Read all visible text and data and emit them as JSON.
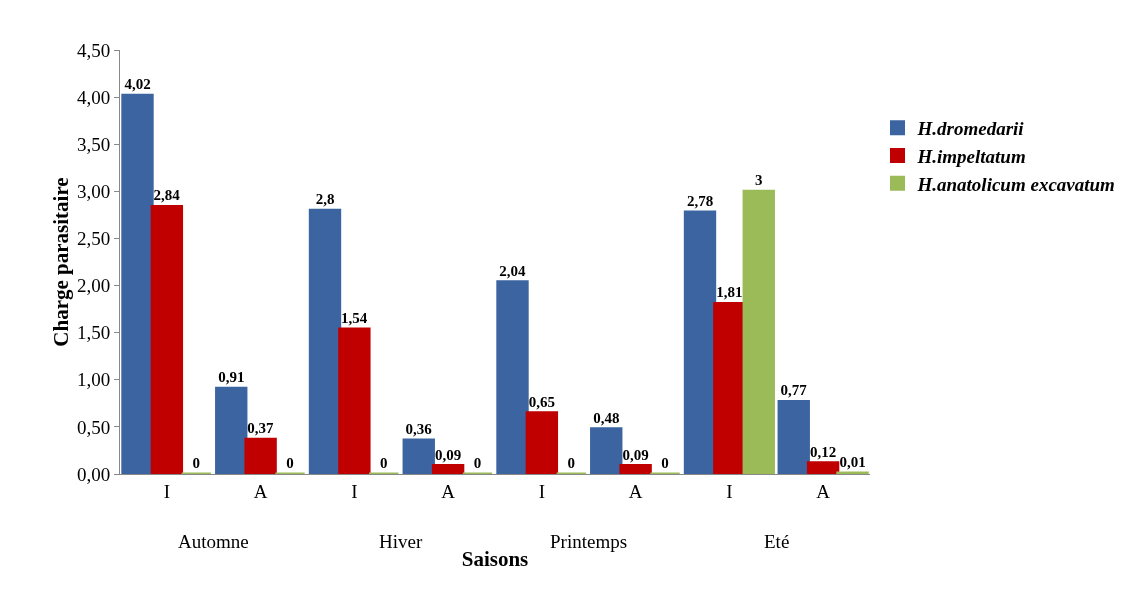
{
  "chart_data": {
    "type": "bar",
    "xlabel": "Saisons",
    "ylabel": "Charge parasitaire",
    "categories": [
      "I",
      "A",
      "I",
      "A",
      "I",
      "A",
      "I",
      "A"
    ],
    "series": [
      {
        "name": "H.dromedarii",
        "color": "#3b64a0",
        "values": [
          4.02,
          0.91,
          2.8,
          0.36,
          2.04,
          0.48,
          2.78,
          0.77
        ],
        "value_labels": [
          "4,02",
          "0,91",
          "2,8",
          "0,36",
          "2,04",
          "0,48",
          "2,78",
          "0,77"
        ]
      },
      {
        "name": "H.impeltatum",
        "color": "#c00000",
        "values": [
          2.84,
          0.37,
          1.54,
          0.09,
          0.65,
          0.09,
          1.81,
          0.12
        ],
        "value_labels": [
          "2,84",
          "0,37",
          "1,54",
          "0,09",
          "0,65",
          "0,09",
          "1,81",
          "0,12"
        ]
      },
      {
        "name": "H.anatolicum excavatum",
        "color": "#9bbb59",
        "values": [
          0,
          0,
          0,
          0,
          0,
          0,
          3,
          0.01
        ],
        "value_labels": [
          "0",
          "0",
          "0",
          "0",
          "0",
          "0",
          "3",
          "0,01"
        ]
      }
    ],
    "annotations": [
      "Automne",
      "Hiver",
      "Printemps",
      "Eté"
    ],
    "ylim": [
      0,
      4.5
    ],
    "yticks": [
      {
        "value": 0,
        "label": "0,00"
      },
      {
        "value": 0.5,
        "label": "0,50"
      },
      {
        "value": 1,
        "label": "1,00"
      },
      {
        "value": 1.5,
        "label": "1,50"
      },
      {
        "value": 2,
        "label": "2,00"
      },
      {
        "value": 2.5,
        "label": "2,50"
      },
      {
        "value": 3,
        "label": "3,00"
      },
      {
        "value": 3.5,
        "label": "3,50"
      },
      {
        "value": 4,
        "label": "4,00"
      },
      {
        "value": 4.5,
        "label": "4,50"
      }
    ],
    "grid": false,
    "legend": "right"
  }
}
